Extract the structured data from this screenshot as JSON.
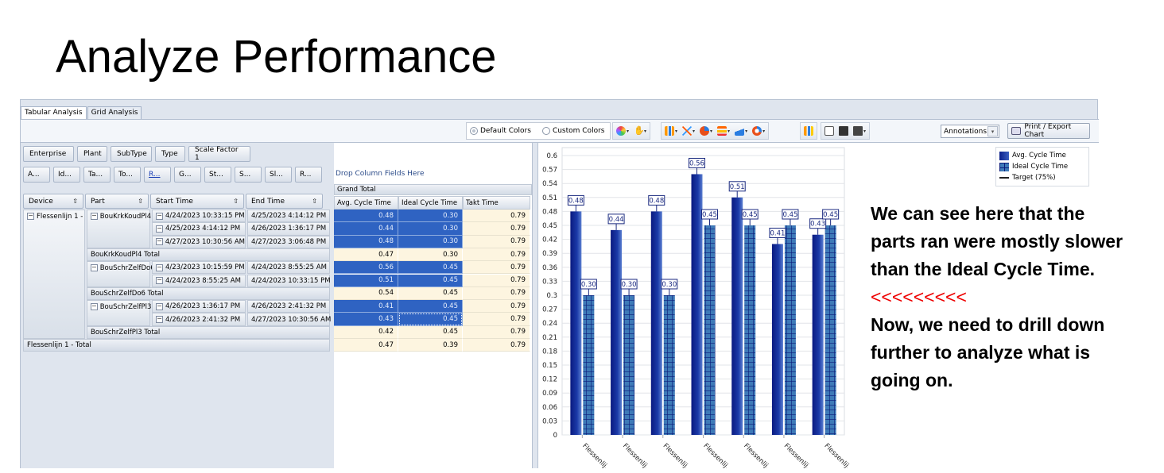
{
  "slide": {
    "title": "Analyze Performance",
    "note_lines": [
      "We can see here that the",
      "parts ran were mostly slower",
      "than the Ideal Cycle Time.",
      "<<<<<<<<<",
      "Now, we need to drill down",
      "further to analyze what is",
      "going on."
    ]
  },
  "tabs": [
    {
      "label": "Tabular Analysis",
      "active": true
    },
    {
      "label": "Grid Analysis",
      "active": false
    }
  ],
  "toolbar": {
    "color_options": [
      {
        "label": "Default Colors",
        "selected": true
      },
      {
        "label": "Custom Colors",
        "selected": false
      }
    ],
    "icons": [
      "palette-icon",
      "pointer-icon",
      "bar-chart-icon",
      "line-chart-icon",
      "pie-chart-icon",
      "horizontal-bar-icon",
      "area-chart-icon",
      "doughnut-chart-icon",
      "combo-chart-icon",
      "preview-icon",
      "print-settings-icon",
      "export-icon"
    ],
    "annotations_select": "Annotations",
    "print_label": "Print / Export Chart"
  },
  "pivot": {
    "filter_fields": [
      "Enterprise",
      "Plant",
      "SubType",
      "Type",
      "Scale Factor 1"
    ],
    "data_fields": [
      "A...",
      "Id...",
      "Ta...",
      "To...",
      "R...",
      "G...",
      "St...",
      "S...",
      "Sl...",
      "R..."
    ],
    "drop_column_hint": "Drop Column Fields Here",
    "row_headers": [
      "Device",
      "Part",
      "Start Time",
      "End Time"
    ],
    "grand_total_label": "Grand Total",
    "value_headers": [
      "Avg. Cycle Time",
      "Ideal Cycle Time",
      "Takt Time"
    ],
    "device": "Flessenlijn 1 -",
    "device_total": "Flessenlijn 1 - Total",
    "rows": [
      {
        "part": "BouKrkKoudPl4",
        "start": "4/24/2023 10:33:15 PM",
        "end": "4/25/2023 4:14:12 PM",
        "avg": "0.48",
        "ideal": "0.30",
        "takt": "0.79"
      },
      {
        "part": "",
        "start": "4/25/2023 4:14:12 PM",
        "end": "4/26/2023 1:36:17 PM",
        "avg": "0.44",
        "ideal": "0.30",
        "takt": "0.79"
      },
      {
        "part": "",
        "start": "4/27/2023 10:30:56 AM",
        "end": "4/27/2023 3:06:48 PM",
        "avg": "0.48",
        "ideal": "0.30",
        "takt": "0.79"
      },
      {
        "total": "BouKrkKoudPl4 Total",
        "avg": "0.47",
        "ideal": "0.30",
        "takt": "0.79"
      },
      {
        "part": "BouSchrZelfDo6",
        "start": "4/23/2023 10:15:59 PM",
        "end": "4/24/2023 8:55:25 AM",
        "avg": "0.56",
        "ideal": "0.45",
        "takt": "0.79"
      },
      {
        "part": "",
        "start": "4/24/2023 8:55:25 AM",
        "end": "4/24/2023 10:33:15 PM",
        "avg": "0.51",
        "ideal": "0.45",
        "takt": "0.79"
      },
      {
        "total": "BouSchrZelfDo6 Total",
        "avg": "0.54",
        "ideal": "0.45",
        "takt": "0.79"
      },
      {
        "part": "BouSchrZelfPl3",
        "start": "4/26/2023 1:36:17 PM",
        "end": "4/26/2023 2:41:32 PM",
        "avg": "0.41",
        "ideal": "0.45",
        "takt": "0.79"
      },
      {
        "part": "",
        "start": "4/26/2023 2:41:32 PM",
        "end": "4/27/2023 10:30:56 AM",
        "avg": "0.43",
        "ideal": "0.45",
        "takt": "0.79"
      },
      {
        "total": "BouSchrZelfPl3 Total",
        "avg": "0.42",
        "ideal": "0.45",
        "takt": "0.79"
      },
      {
        "grand": "Flessenlijn 1 - Total",
        "avg": "0.47",
        "ideal": "0.39",
        "takt": "0.79"
      }
    ]
  },
  "chart_data": {
    "type": "bar",
    "categories": [
      "Flessenlij...",
      "Flessenlij...",
      "Flessenlij...",
      "Flessenlij...",
      "Flessenlij...",
      "Flessenlij...",
      "Flessenlij..."
    ],
    "series": [
      {
        "name": "Avg. Cycle Time",
        "values": [
          0.48,
          0.44,
          0.48,
          0.56,
          0.51,
          0.41,
          0.43
        ]
      },
      {
        "name": "Ideal Cycle Time",
        "values": [
          0.3,
          0.3,
          0.3,
          0.45,
          0.45,
          0.45,
          0.45
        ]
      }
    ],
    "legend": [
      "Avg. Cycle Time",
      "Ideal Cycle Time",
      "Target (75%)"
    ],
    "legend_position": "top-right",
    "yticks": [
      "0",
      "0.03",
      "0.06",
      "0.09",
      "0.12",
      "0.15",
      "0.18",
      "0.21",
      "0.24",
      "0.27",
      "0.3",
      "0.33",
      "0.36",
      "0.39",
      "0.42",
      "0.45",
      "0.48",
      "0.51",
      "0.54",
      "0.57",
      "0.6"
    ],
    "ylim": [
      0,
      0.6
    ],
    "grid": true,
    "title": "",
    "xlabel": "",
    "ylabel": "",
    "colors": {
      "avg": "#0c1f8a",
      "ideal": "#3e7ab8"
    }
  }
}
